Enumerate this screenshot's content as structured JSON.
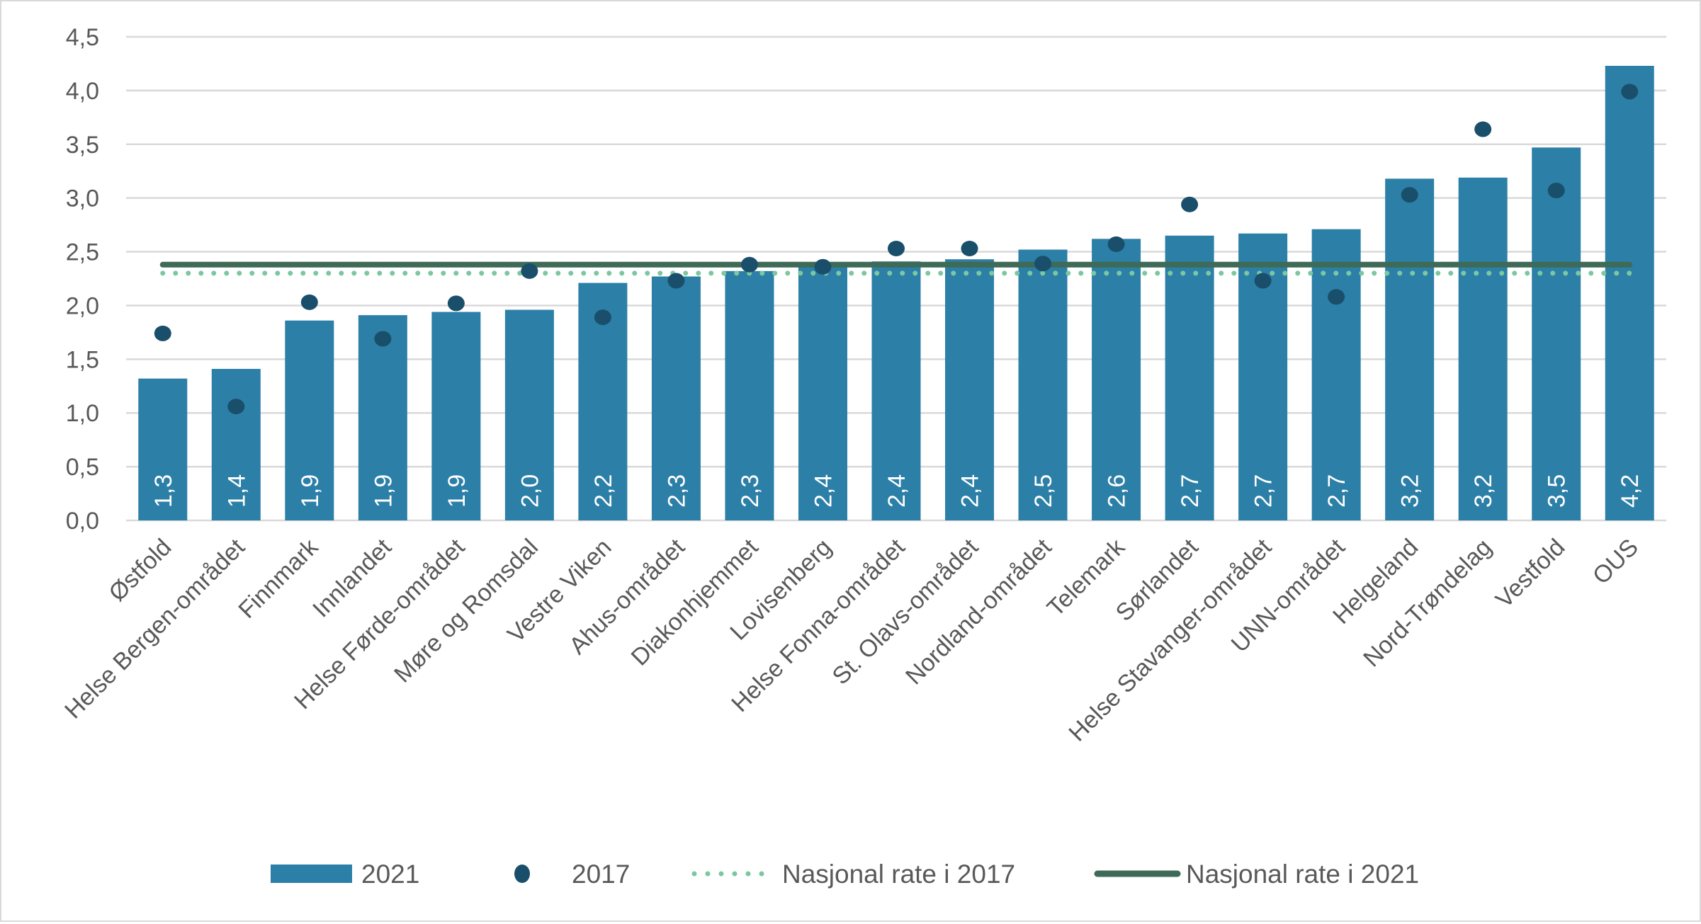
{
  "chart_data": {
    "type": "bar",
    "title": "",
    "xlabel": "",
    "ylabel": "",
    "ylim": [
      0,
      4.5
    ],
    "yticks": [
      "0,0",
      "0,5",
      "1,0",
      "1,5",
      "2,0",
      "2,5",
      "3,0",
      "3,5",
      "4,0",
      "4,5"
    ],
    "grid": true,
    "legend_position": "bottom",
    "categories": [
      "Østfold",
      "Helse Bergen-området",
      "Finnmark",
      "Innlandet",
      "Helse Førde-området",
      "Møre og Romsdal",
      "Vestre Viken",
      "Ahus-området",
      "Diakonhjemmet",
      "Lovisenberg",
      "Helse Fonna-området",
      "St. Olavs-området",
      "Nordland-området",
      "Telemark",
      "Sørlandet",
      "Helse Stavanger-området",
      "UNN-området",
      "Helgeland",
      "Nord-Trøndelag",
      "Vestfold",
      "OUS"
    ],
    "series": [
      {
        "name": "2021",
        "kind": "bar",
        "color": "#2C7FA7",
        "values": [
          1.32,
          1.41,
          1.86,
          1.91,
          1.94,
          1.96,
          2.21,
          2.27,
          2.32,
          2.38,
          2.41,
          2.43,
          2.52,
          2.62,
          2.65,
          2.67,
          2.71,
          3.18,
          3.19,
          3.47,
          4.23
        ],
        "labels": [
          "1,3",
          "1,4",
          "1,9",
          "1,9",
          "1,9",
          "2,0",
          "2,2",
          "2,3",
          "2,3",
          "2,4",
          "2,4",
          "2,4",
          "2,5",
          "2,6",
          "2,7",
          "2,7",
          "2,7",
          "3,2",
          "3,2",
          "3,5",
          "4,2"
        ]
      },
      {
        "name": "2017",
        "kind": "dot",
        "color": "#1A4F6B",
        "values": [
          1.74,
          1.06,
          2.03,
          1.69,
          2.02,
          2.32,
          1.89,
          2.23,
          2.38,
          2.36,
          2.53,
          2.53,
          2.39,
          2.57,
          2.94,
          2.23,
          2.08,
          3.03,
          3.64,
          3.07,
          3.99
        ]
      },
      {
        "name": "Nasjonal rate i 2017",
        "kind": "dotted-line",
        "color": "#7BC8A0",
        "value": 2.3
      },
      {
        "name": "Nasjonal rate i 2021",
        "kind": "line",
        "color": "#3E6A57",
        "value": 2.38
      }
    ]
  }
}
